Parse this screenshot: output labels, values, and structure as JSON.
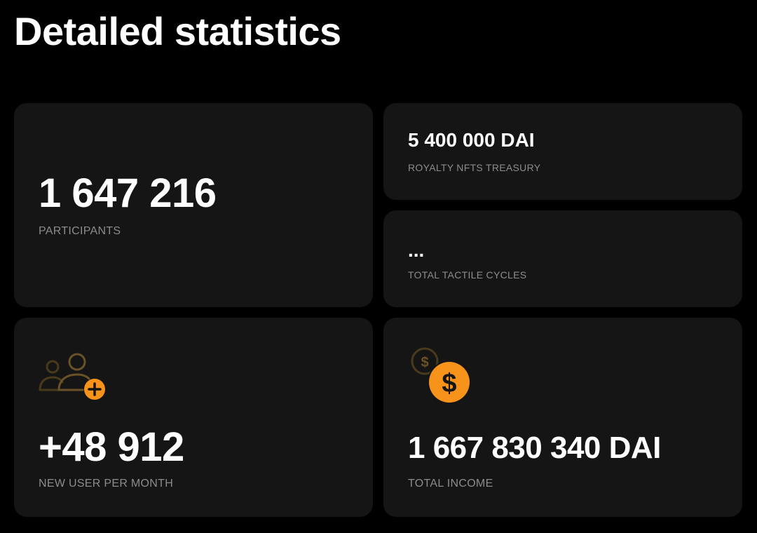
{
  "page": {
    "title": "Detailed statistics"
  },
  "colors": {
    "background": "#000000",
    "card": "#151515",
    "label": "#8c8c8c",
    "accent": "#f7931a",
    "accent_muted": "#4a3a1c"
  },
  "stats": {
    "participants": {
      "value": "1 647 216",
      "label": "PARTICIPANTS"
    },
    "treasury": {
      "value": "5 400 000 DAI",
      "label": "ROYALTY NFTS TREASURY"
    },
    "cycles": {
      "value": "...",
      "label": "TOTAL TACTILE CYCLES"
    },
    "new_users": {
      "value": "+48 912",
      "label": "NEW USER PER MONTH",
      "icon": "add-users-icon"
    },
    "income": {
      "value": "1 667 830 340 DAI",
      "label": "TOTAL INCOME",
      "icon": "dollar-coins-icon"
    }
  }
}
